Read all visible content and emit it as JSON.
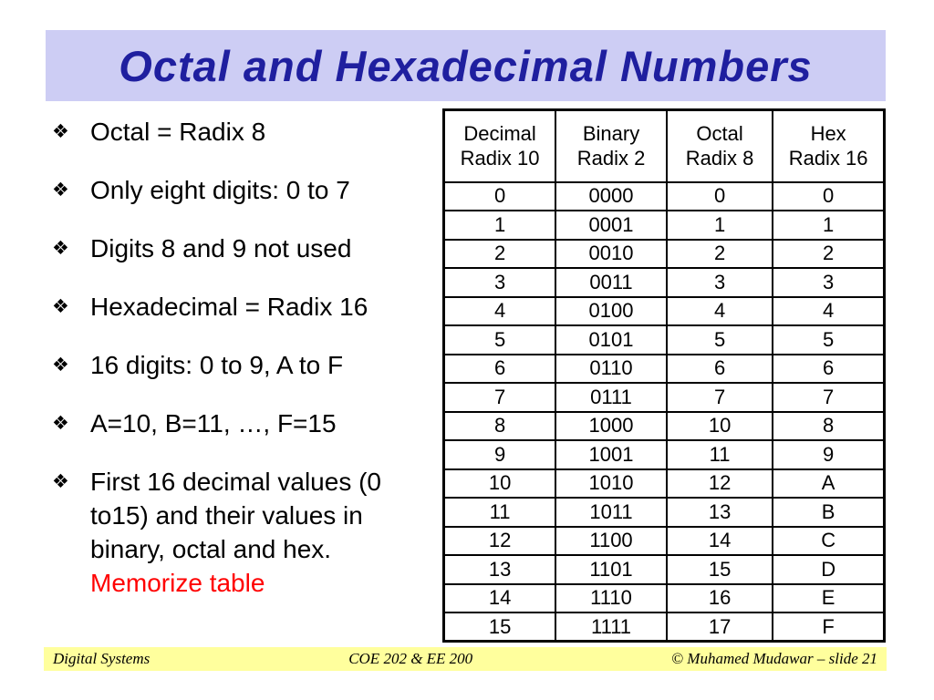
{
  "title": {
    "text": "Octal and Hexadecimal Numbers"
  },
  "colors": {
    "title_band_background": "#cdcdf4",
    "title_text": "#1f1f9f",
    "body_text": "#000000",
    "highlight": "#ff0000",
    "footer_background": "#ffff9d",
    "table_border": "#000000"
  },
  "bullets": {
    "glyph": "❖",
    "glyph_icon": "diamond-bullet-icon",
    "items": [
      {
        "text": "Octal = Radix 8"
      },
      {
        "text": "Only eight digits: 0 to 7"
      },
      {
        "text": "Digits 8 and 9 not used"
      },
      {
        "text": "Hexadecimal = Radix 16"
      },
      {
        "text": "16 digits: 0 to 9, A to F"
      },
      {
        "text": "A=10, B=11, …, F=15"
      },
      {
        "text": "First 16 decimal values (0 to15) and their values in binary, octal and hex.",
        "highlight": "Memorize table"
      }
    ]
  },
  "table": {
    "headers": [
      "Decimal\nRadix 10",
      "Binary\nRadix 2",
      "Octal\nRadix 8",
      "Hex\nRadix 16"
    ],
    "rows": [
      [
        "0",
        "0000",
        "0",
        "0"
      ],
      [
        "1",
        "0001",
        "1",
        "1"
      ],
      [
        "2",
        "0010",
        "2",
        "2"
      ],
      [
        "3",
        "0011",
        "3",
        "3"
      ],
      [
        "4",
        "0100",
        "4",
        "4"
      ],
      [
        "5",
        "0101",
        "5",
        "5"
      ],
      [
        "6",
        "0110",
        "6",
        "6"
      ],
      [
        "7",
        "0111",
        "7",
        "7"
      ],
      [
        "8",
        "1000",
        "10",
        "8"
      ],
      [
        "9",
        "1001",
        "11",
        "9"
      ],
      [
        "10",
        "1010",
        "12",
        "A"
      ],
      [
        "11",
        "1011",
        "13",
        "B"
      ],
      [
        "12",
        "1100",
        "14",
        "C"
      ],
      [
        "13",
        "1101",
        "15",
        "D"
      ],
      [
        "14",
        "1110",
        "16",
        "E"
      ],
      [
        "15",
        "1111",
        "17",
        "F"
      ]
    ]
  },
  "footer": {
    "left": "Digital Systems",
    "center": "COE 202 & EE 200",
    "right": "© Muhamed Mudawar – slide 21"
  }
}
